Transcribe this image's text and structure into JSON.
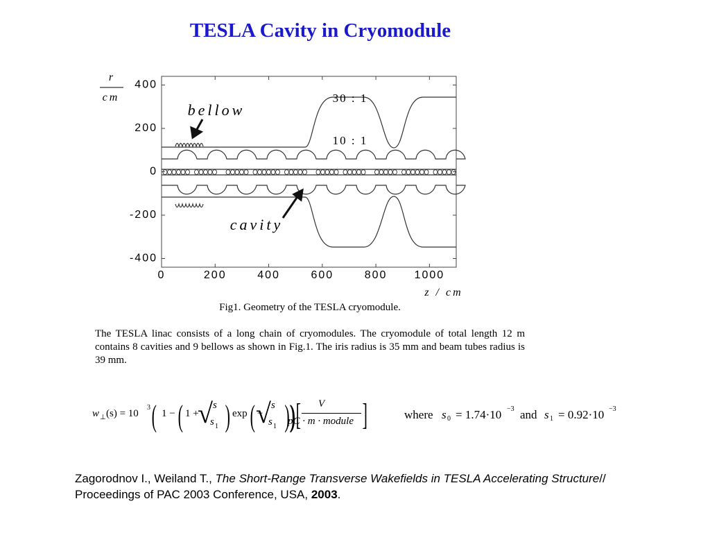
{
  "title": "TESLA Cavity in Cryomodule",
  "figure": {
    "y_label_top": "r",
    "y_label_bottom": "cm",
    "x_label": "z / cm",
    "xlim": [
      0,
      1100
    ],
    "ylim": [
      -440,
      440
    ],
    "xticks": [
      0,
      200,
      400,
      600,
      800,
      1000
    ],
    "yticks": [
      400,
      200,
      0,
      -200,
      -400
    ],
    "annotations": {
      "bellow": "bellow",
      "cavity": "cavity",
      "ratio_30": "30 : 1",
      "ratio_10": "10 : 1"
    },
    "caption": "Fig1. Geometry of the TESLA cryomodule."
  },
  "paragraph": "The TESLA linac consists of a long chain of cryomodules. The cryomodule of total length 12 m contains 8 cavities and 9 bellows as shown in Fig.1. The iris radius is 35 mm and beam tubes radius is 39 mm.",
  "formula": {
    "w": "w",
    "perp": "⊥",
    "arg": "(s) = 10",
    "power": "3",
    "one_minus": "1 −",
    "one_plus": "1 +",
    "s": "s",
    "s1": "s",
    "s1_sub": "1",
    "exp": "exp",
    "minus": "−",
    "numerator": "V",
    "denominator": "pC · m · module",
    "where": "where",
    "s0_name": "s",
    "s0_sub": "0",
    "s0_value": "= 1.74·10",
    "s0_power": "−3",
    "and": "and",
    "s1_name": "s",
    "s1_name_sub": "1",
    "s1_value": "= 0.92·10",
    "s1_power": "−3"
  },
  "reference": {
    "authors": "Zagorodnov I., Weiland T., ",
    "title": "The Short-Range Transverse Wakefields in TESLA Accelerating Structure",
    "rest": "// Proceedings of PAC 2003 Conference,  USA,  ",
    "year": "2003",
    "end": "."
  }
}
